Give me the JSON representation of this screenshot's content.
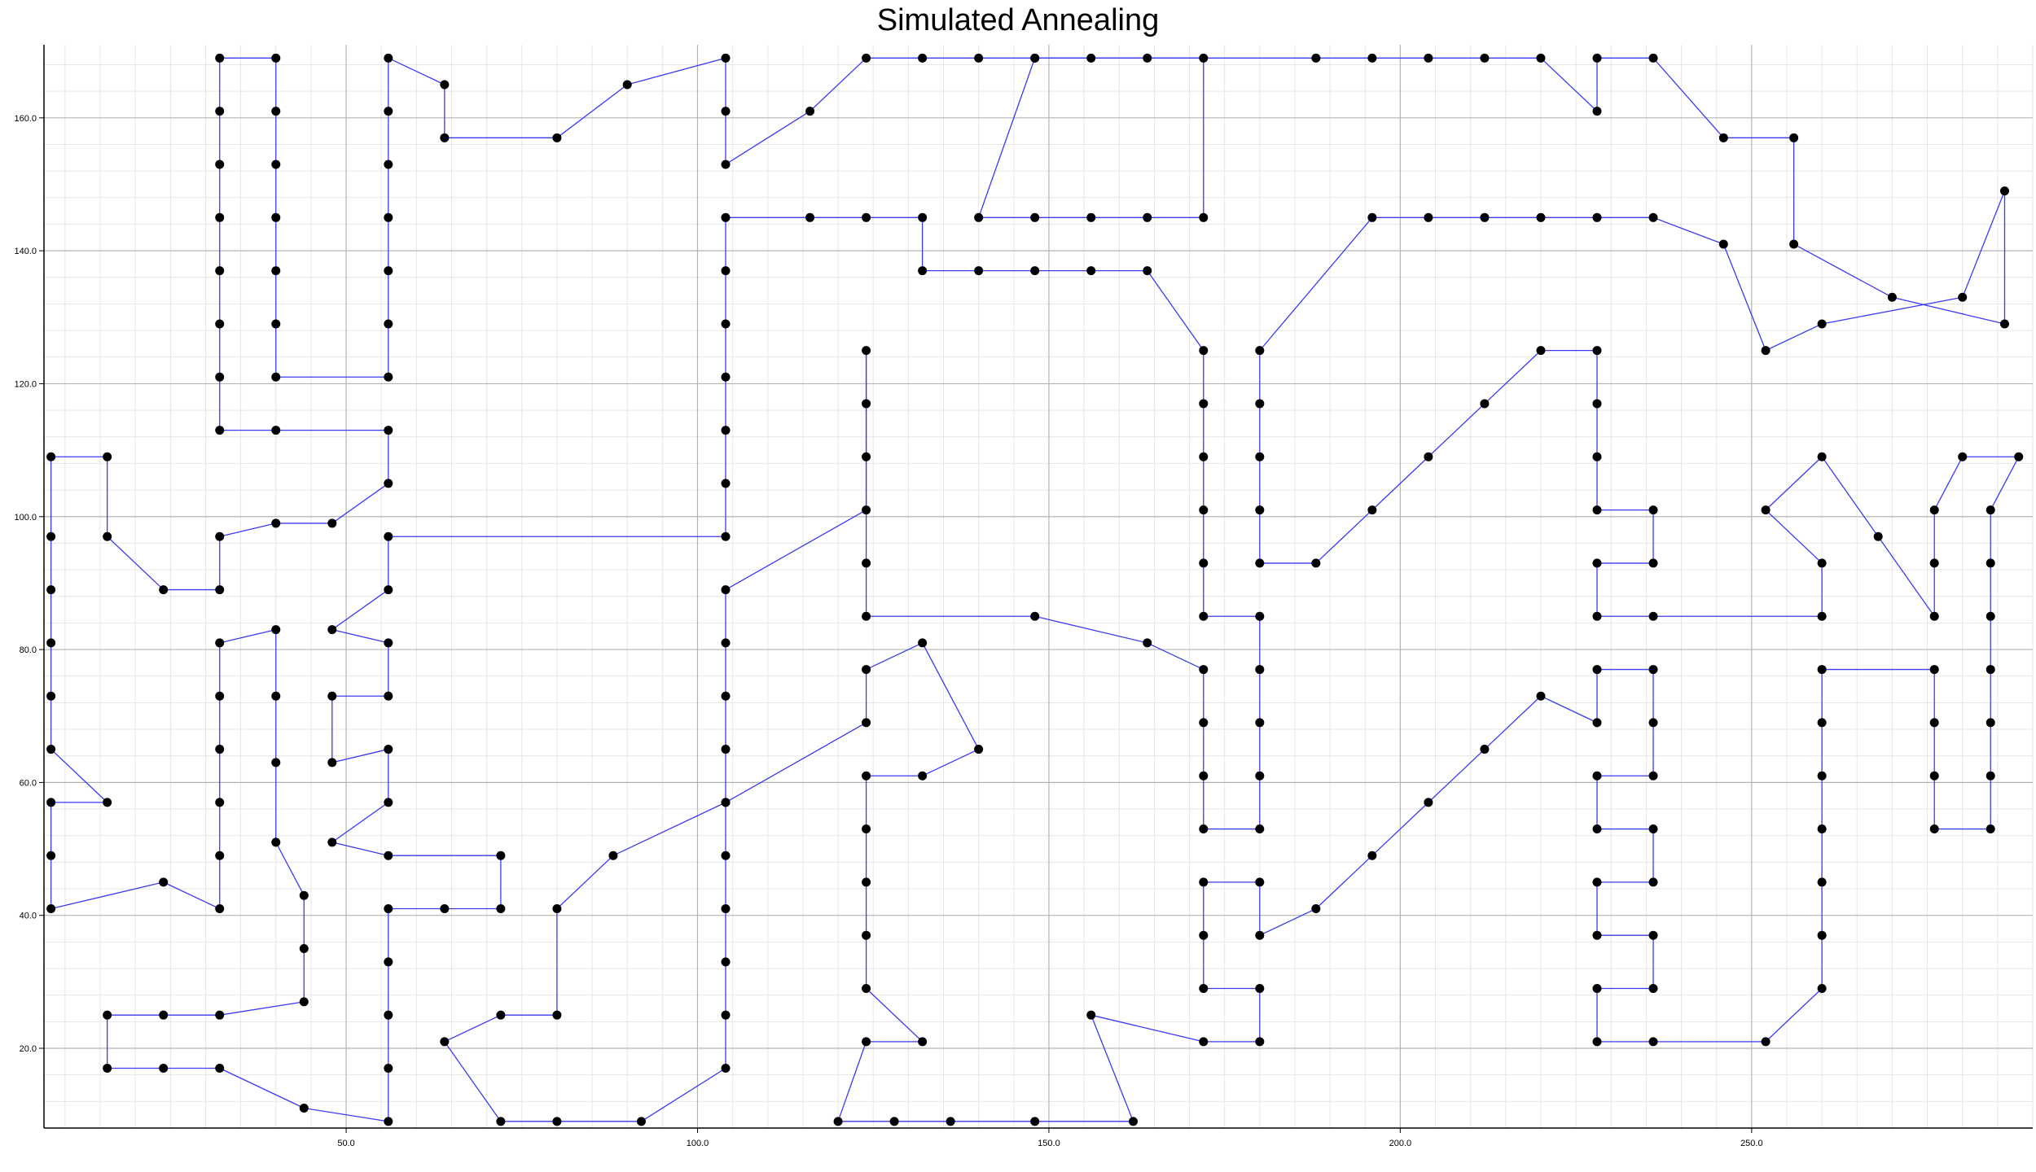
{
  "chart_data": {
    "type": "line",
    "title": "Simulated Annealing",
    "xlabel": "",
    "ylabel": "",
    "xlim": [
      7,
      290
    ],
    "ylim": [
      8,
      171
    ],
    "x_ticks": [
      50,
      100,
      150,
      200,
      250
    ],
    "y_ticks": [
      20,
      40,
      60,
      80,
      100,
      120,
      140,
      160
    ],
    "x_tick_labels": [
      "50.0",
      "100.0",
      "150.0",
      "200.0",
      "250.0"
    ],
    "y_tick_labels": [
      "20.0",
      "40.0",
      "60.0",
      "80.0",
      "100.0",
      "120.0",
      "140.0",
      "160.0"
    ],
    "grid": true,
    "minor_grid": true,
    "line_color": "#3a3af0",
    "point_color": "#000000",
    "series": [
      {
        "closed": true,
        "points": [
          [
            8,
            41
          ],
          [
            8,
            49
          ],
          [
            8,
            57
          ],
          [
            16,
            57
          ],
          [
            8,
            65
          ],
          [
            8,
            73
          ],
          [
            8,
            81
          ],
          [
            8,
            89
          ],
          [
            8,
            97
          ],
          [
            8,
            109
          ],
          [
            16,
            109
          ],
          [
            16,
            97
          ],
          [
            24,
            89
          ],
          [
            32,
            89
          ],
          [
            32,
            97
          ],
          [
            40,
            99
          ],
          [
            48,
            99
          ],
          [
            56,
            105
          ],
          [
            56,
            113
          ],
          [
            40,
            113
          ],
          [
            32,
            113
          ],
          [
            32,
            121
          ],
          [
            32,
            129
          ],
          [
            32,
            137
          ],
          [
            32,
            145
          ],
          [
            32,
            153
          ],
          [
            32,
            161
          ],
          [
            32,
            169
          ],
          [
            40,
            169
          ],
          [
            40,
            161
          ],
          [
            40,
            153
          ],
          [
            40,
            145
          ],
          [
            40,
            137
          ],
          [
            40,
            129
          ],
          [
            40,
            121
          ],
          [
            56,
            121
          ],
          [
            56,
            129
          ],
          [
            56,
            137
          ],
          [
            56,
            145
          ],
          [
            56,
            153
          ],
          [
            56,
            161
          ],
          [
            56,
            169
          ],
          [
            64,
            165
          ],
          [
            64,
            157
          ],
          [
            80,
            157
          ],
          [
            90,
            165
          ],
          [
            104,
            169
          ],
          [
            104,
            161
          ],
          [
            104,
            153
          ],
          [
            116,
            161
          ],
          [
            124,
            169
          ],
          [
            132,
            169
          ],
          [
            140,
            169
          ],
          [
            148,
            169
          ],
          [
            156,
            169
          ],
          [
            164,
            169
          ],
          [
            172,
            169
          ],
          [
            172,
            145
          ],
          [
            164,
            145
          ],
          [
            156,
            145
          ],
          [
            148,
            145
          ],
          [
            140,
            145
          ],
          [
            148,
            169
          ],
          [
            188,
            169
          ],
          [
            196,
            169
          ],
          [
            204,
            169
          ],
          [
            212,
            169
          ],
          [
            220,
            169
          ],
          [
            228,
            161
          ],
          [
            228,
            169
          ],
          [
            236,
            169
          ],
          [
            246,
            157
          ],
          [
            256,
            157
          ],
          [
            256,
            141
          ],
          [
            270,
            133
          ],
          [
            286,
            129
          ],
          [
            286,
            149
          ],
          [
            280,
            133
          ],
          [
            260,
            129
          ],
          [
            252,
            125
          ],
          [
            246,
            141
          ],
          [
            236,
            145
          ],
          [
            228,
            145
          ],
          [
            220,
            145
          ],
          [
            212,
            145
          ],
          [
            204,
            145
          ],
          [
            196,
            145
          ],
          [
            180,
            125
          ],
          [
            180,
            117
          ],
          [
            180,
            109
          ],
          [
            180,
            101
          ],
          [
            180,
            93
          ],
          [
            188,
            93
          ],
          [
            196,
            101
          ],
          [
            204,
            109
          ],
          [
            212,
            117
          ],
          [
            220,
            125
          ],
          [
            228,
            125
          ],
          [
            228,
            117
          ],
          [
            228,
            109
          ],
          [
            228,
            101
          ],
          [
            236,
            101
          ],
          [
            236,
            93
          ],
          [
            228,
            93
          ],
          [
            228,
            85
          ],
          [
            236,
            85
          ],
          [
            260,
            85
          ],
          [
            260,
            93
          ],
          [
            252,
            101
          ],
          [
            260,
            109
          ],
          [
            268,
            97
          ],
          [
            276,
            85
          ],
          [
            276,
            93
          ],
          [
            276,
            101
          ],
          [
            280,
            109
          ],
          [
            288,
            109
          ],
          [
            284,
            101
          ],
          [
            284,
            93
          ],
          [
            284,
            85
          ],
          [
            284,
            77
          ],
          [
            284,
            69
          ],
          [
            284,
            61
          ],
          [
            284,
            53
          ],
          [
            276,
            53
          ],
          [
            276,
            61
          ],
          [
            276,
            69
          ],
          [
            276,
            77
          ],
          [
            260,
            77
          ],
          [
            260,
            69
          ],
          [
            260,
            61
          ],
          [
            260,
            53
          ],
          [
            260,
            45
          ],
          [
            260,
            37
          ],
          [
            260,
            29
          ],
          [
            252,
            21
          ],
          [
            236,
            21
          ],
          [
            228,
            21
          ],
          [
            228,
            29
          ],
          [
            236,
            29
          ],
          [
            236,
            37
          ],
          [
            228,
            37
          ],
          [
            228,
            45
          ],
          [
            236,
            45
          ],
          [
            236,
            53
          ],
          [
            228,
            53
          ],
          [
            228,
            61
          ],
          [
            236,
            61
          ],
          [
            236,
            69
          ],
          [
            236,
            77
          ],
          [
            228,
            77
          ],
          [
            228,
            69
          ],
          [
            220,
            73
          ],
          [
            212,
            65
          ],
          [
            204,
            57
          ],
          [
            196,
            49
          ],
          [
            188,
            41
          ],
          [
            180,
            37
          ],
          [
            180,
            45
          ],
          [
            172,
            45
          ],
          [
            172,
            37
          ],
          [
            172,
            29
          ],
          [
            180,
            29
          ],
          [
            180,
            21
          ],
          [
            172,
            21
          ],
          [
            156,
            25
          ],
          [
            162,
            9
          ],
          [
            148,
            9
          ],
          [
            136,
            9
          ],
          [
            128,
            9
          ],
          [
            120,
            9
          ],
          [
            124,
            21
          ],
          [
            132,
            21
          ],
          [
            124,
            29
          ],
          [
            124,
            37
          ],
          [
            124,
            45
          ],
          [
            124,
            53
          ],
          [
            124,
            61
          ],
          [
            132,
            61
          ],
          [
            140,
            65
          ],
          [
            132,
            81
          ],
          [
            124,
            77
          ],
          [
            124,
            69
          ],
          [
            104,
            57
          ],
          [
            88,
            49
          ],
          [
            80,
            41
          ],
          [
            80,
            25
          ],
          [
            72,
            25
          ],
          [
            64,
            21
          ],
          [
            72,
            9
          ],
          [
            80,
            9
          ],
          [
            92,
            9
          ],
          [
            104,
            17
          ],
          [
            104,
            25
          ],
          [
            104,
            33
          ],
          [
            104,
            41
          ],
          [
            104,
            49
          ],
          [
            104,
            57
          ],
          [
            104,
            65
          ],
          [
            104,
            73
          ],
          [
            104,
            81
          ],
          [
            104,
            89
          ],
          [
            124,
            101
          ],
          [
            124,
            109
          ],
          [
            124,
            117
          ],
          [
            124,
            125
          ],
          [
            124,
            93
          ],
          [
            124,
            85
          ],
          [
            148,
            85
          ],
          [
            164,
            81
          ],
          [
            172,
            77
          ],
          [
            172,
            69
          ],
          [
            172,
            61
          ],
          [
            172,
            53
          ],
          [
            180,
            53
          ],
          [
            180,
            61
          ],
          [
            180,
            69
          ],
          [
            180,
            77
          ],
          [
            180,
            85
          ],
          [
            172,
            85
          ],
          [
            172,
            93
          ],
          [
            172,
            101
          ],
          [
            172,
            109
          ],
          [
            172,
            117
          ],
          [
            172,
            125
          ],
          [
            164,
            137
          ],
          [
            156,
            137
          ],
          [
            148,
            137
          ],
          [
            140,
            137
          ],
          [
            132,
            137
          ],
          [
            132,
            145
          ],
          [
            124,
            145
          ],
          [
            116,
            145
          ],
          [
            104,
            145
          ],
          [
            104,
            137
          ],
          [
            104,
            129
          ],
          [
            104,
            121
          ],
          [
            104,
            113
          ],
          [
            104,
            105
          ],
          [
            104,
            97
          ],
          [
            56,
            97
          ],
          [
            56,
            89
          ],
          [
            48,
            83
          ],
          [
            56,
            81
          ],
          [
            56,
            73
          ],
          [
            48,
            73
          ],
          [
            48,
            63
          ],
          [
            56,
            65
          ],
          [
            56,
            57
          ],
          [
            48,
            51
          ],
          [
            56,
            49
          ],
          [
            72,
            49
          ],
          [
            72,
            41
          ],
          [
            64,
            41
          ],
          [
            56,
            41
          ],
          [
            56,
            33
          ],
          [
            56,
            25
          ],
          [
            56,
            17
          ],
          [
            56,
            9
          ],
          [
            44,
            11
          ],
          [
            32,
            17
          ],
          [
            24,
            17
          ],
          [
            16,
            17
          ],
          [
            16,
            25
          ],
          [
            24,
            25
          ],
          [
            32,
            25
          ],
          [
            44,
            27
          ],
          [
            44,
            35
          ],
          [
            44,
            43
          ],
          [
            40,
            51
          ],
          [
            40,
            63
          ],
          [
            40,
            73
          ],
          [
            40,
            83
          ],
          [
            32,
            81
          ],
          [
            32,
            73
          ],
          [
            32,
            65
          ],
          [
            32,
            57
          ],
          [
            32,
            49
          ],
          [
            32,
            41
          ],
          [
            24,
            45
          ]
        ]
      }
    ]
  }
}
